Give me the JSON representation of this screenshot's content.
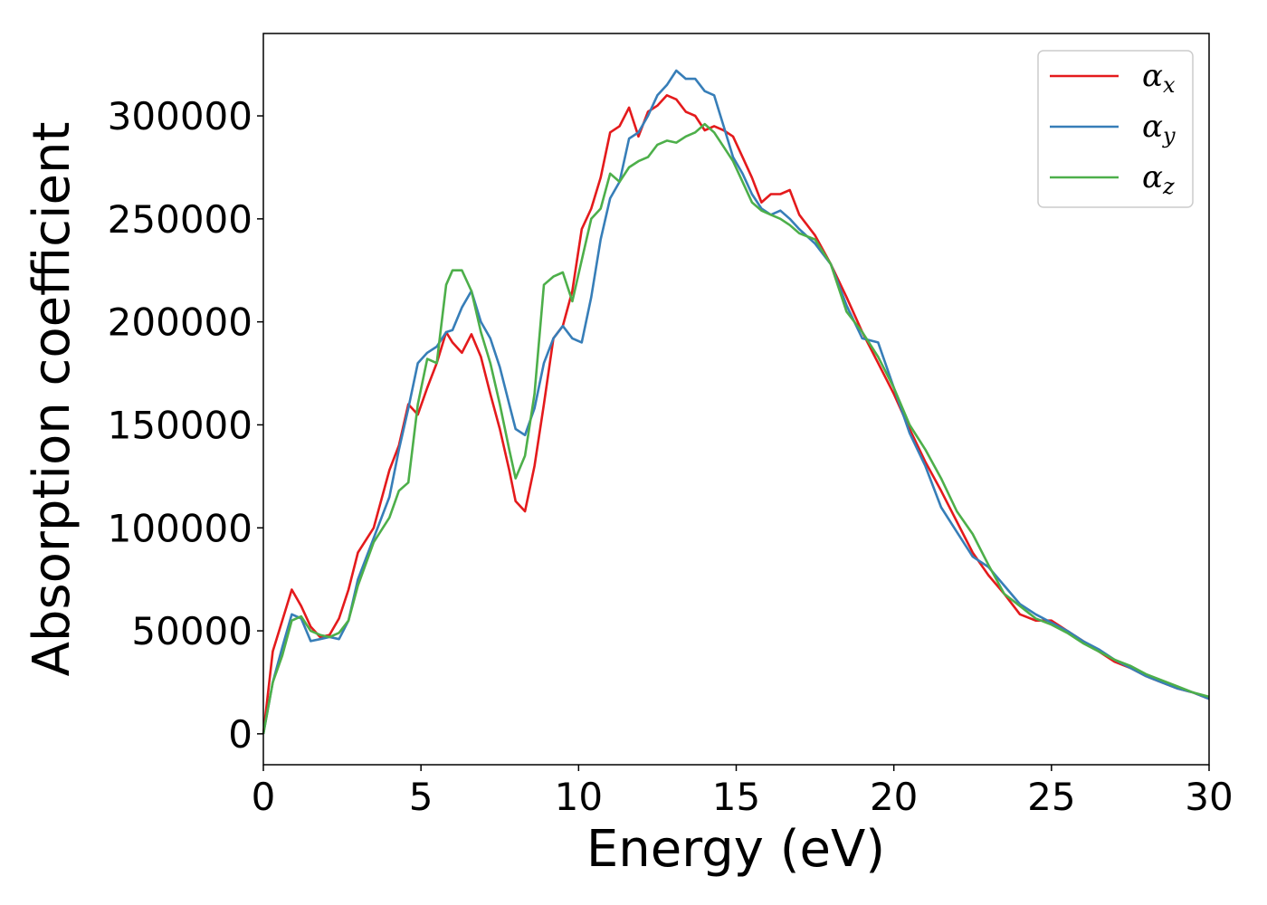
{
  "chart_data": {
    "type": "line",
    "title": "",
    "xlabel": "Energy (eV)",
    "ylabel": "Absorption coefficient",
    "xlim": [
      0,
      30
    ],
    "ylim": [
      -15000,
      340000
    ],
    "xticks": [
      0,
      5,
      10,
      15,
      20,
      25,
      30
    ],
    "yticks": [
      0,
      50000,
      100000,
      150000,
      200000,
      250000,
      300000
    ],
    "grid": false,
    "legend_position": "top-right",
    "series": [
      {
        "name": "α_x",
        "symbol": "α",
        "subscript": "x",
        "color": "#e41a1c",
        "x": [
          0,
          0.3,
          0.6,
          0.9,
          1.2,
          1.5,
          1.8,
          2.1,
          2.4,
          2.7,
          3.0,
          3.5,
          4.0,
          4.3,
          4.6,
          4.9,
          5.2,
          5.5,
          5.8,
          6.0,
          6.3,
          6.6,
          6.9,
          7.2,
          7.5,
          7.8,
          8.0,
          8.3,
          8.6,
          8.9,
          9.2,
          9.5,
          9.8,
          10.1,
          10.4,
          10.7,
          11.0,
          11.3,
          11.6,
          11.9,
          12.2,
          12.5,
          12.8,
          13.1,
          13.4,
          13.7,
          14.0,
          14.3,
          14.6,
          14.9,
          15.2,
          15.5,
          15.8,
          16.1,
          16.4,
          16.7,
          17.0,
          17.5,
          18.0,
          18.5,
          19.0,
          19.5,
          20.0,
          20.5,
          21.0,
          21.5,
          22.0,
          22.5,
          23.0,
          23.5,
          24.0,
          24.5,
          25.0,
          25.5,
          26.0,
          26.5,
          27.0,
          27.5,
          28.0,
          28.5,
          29.0,
          29.5,
          30.0
        ],
        "y": [
          0,
          40000,
          55000,
          70000,
          62000,
          52000,
          47000,
          48000,
          56000,
          70000,
          88000,
          100000,
          128000,
          140000,
          160000,
          155000,
          168000,
          180000,
          195000,
          190000,
          185000,
          194000,
          183000,
          165000,
          148000,
          128000,
          113000,
          108000,
          130000,
          160000,
          192000,
          198000,
          215000,
          245000,
          255000,
          270000,
          292000,
          295000,
          304000,
          290000,
          302000,
          305000,
          310000,
          308000,
          302000,
          300000,
          293000,
          295000,
          293000,
          290000,
          280000,
          270000,
          258000,
          262000,
          262000,
          264000,
          252000,
          242000,
          228000,
          212000,
          195000,
          180000,
          165000,
          148000,
          132000,
          118000,
          103000,
          88000,
          77000,
          68000,
          58000,
          55000,
          55000,
          50000,
          45000,
          40000,
          35000,
          32000,
          28000,
          25000,
          22000,
          20000,
          17000
        ]
      },
      {
        "name": "α_y",
        "symbol": "α",
        "subscript": "y",
        "color": "#377eb8",
        "x": [
          0,
          0.3,
          0.6,
          0.9,
          1.2,
          1.5,
          1.8,
          2.1,
          2.4,
          2.7,
          3.0,
          3.5,
          4.0,
          4.3,
          4.6,
          4.9,
          5.2,
          5.5,
          5.8,
          6.0,
          6.3,
          6.6,
          6.9,
          7.2,
          7.5,
          7.8,
          8.0,
          8.3,
          8.6,
          8.9,
          9.2,
          9.5,
          9.8,
          10.1,
          10.4,
          10.7,
          11.0,
          11.3,
          11.6,
          11.9,
          12.2,
          12.5,
          12.8,
          13.1,
          13.4,
          13.7,
          14.0,
          14.3,
          14.6,
          14.9,
          15.2,
          15.5,
          15.8,
          16.1,
          16.4,
          16.7,
          17.0,
          17.5,
          18.0,
          18.5,
          19.0,
          19.5,
          20.0,
          20.5,
          21.0,
          21.5,
          22.0,
          22.5,
          23.0,
          23.5,
          24.0,
          24.5,
          25.0,
          25.5,
          26.0,
          26.5,
          27.0,
          27.5,
          28.0,
          28.5,
          29.0,
          29.5,
          30.0
        ],
        "y": [
          0,
          25000,
          42000,
          58000,
          56000,
          45000,
          46000,
          47000,
          46000,
          55000,
          75000,
          95000,
          115000,
          138000,
          158000,
          180000,
          185000,
          188000,
          195000,
          196000,
          207000,
          215000,
          200000,
          192000,
          178000,
          160000,
          148000,
          145000,
          158000,
          180000,
          192000,
          198000,
          192000,
          190000,
          212000,
          240000,
          260000,
          268000,
          289000,
          292000,
          300000,
          310000,
          315000,
          322000,
          318000,
          318000,
          312000,
          310000,
          295000,
          280000,
          272000,
          262000,
          255000,
          252000,
          254000,
          250000,
          245000,
          238000,
          228000,
          208000,
          192000,
          190000,
          168000,
          146000,
          130000,
          110000,
          98000,
          86000,
          81000,
          72000,
          63000,
          58000,
          54000,
          50000,
          45000,
          41000,
          36000,
          32000,
          28000,
          25000,
          22000,
          20000,
          17000
        ]
      },
      {
        "name": "α_z",
        "symbol": "α",
        "subscript": "z",
        "color": "#4daf4a",
        "x": [
          0,
          0.3,
          0.6,
          0.9,
          1.2,
          1.5,
          1.8,
          2.1,
          2.4,
          2.7,
          3.0,
          3.5,
          4.0,
          4.3,
          4.6,
          4.9,
          5.2,
          5.5,
          5.8,
          6.0,
          6.3,
          6.6,
          6.9,
          7.2,
          7.5,
          7.8,
          8.0,
          8.3,
          8.6,
          8.9,
          9.2,
          9.5,
          9.8,
          10.1,
          10.4,
          10.7,
          11.0,
          11.3,
          11.6,
          11.9,
          12.2,
          12.5,
          12.8,
          13.1,
          13.4,
          13.7,
          14.0,
          14.3,
          14.6,
          14.9,
          15.2,
          15.5,
          15.8,
          16.1,
          16.4,
          16.7,
          17.0,
          17.5,
          18.0,
          18.5,
          19.0,
          19.5,
          20.0,
          20.5,
          21.0,
          21.5,
          22.0,
          22.5,
          23.0,
          23.5,
          24.0,
          24.5,
          25.0,
          25.5,
          26.0,
          26.5,
          27.0,
          27.5,
          28.0,
          28.5,
          29.0,
          29.5,
          30.0
        ],
        "y": [
          0,
          25000,
          38000,
          55000,
          57000,
          50000,
          48000,
          47000,
          49000,
          55000,
          72000,
          93000,
          105000,
          118000,
          122000,
          160000,
          182000,
          180000,
          218000,
          225000,
          225000,
          215000,
          195000,
          180000,
          160000,
          138000,
          124000,
          135000,
          165000,
          218000,
          222000,
          224000,
          210000,
          230000,
          250000,
          255000,
          272000,
          268000,
          275000,
          278000,
          280000,
          286000,
          288000,
          287000,
          290000,
          292000,
          296000,
          292000,
          285000,
          278000,
          268000,
          258000,
          254000,
          252000,
          250000,
          247000,
          243000,
          240000,
          228000,
          205000,
          195000,
          183000,
          168000,
          150000,
          138000,
          124000,
          108000,
          97000,
          82000,
          68000,
          62000,
          56000,
          53000,
          49000,
          44000,
          40000,
          36000,
          33000,
          29000,
          26000,
          23000,
          20000,
          18000
        ]
      }
    ]
  }
}
